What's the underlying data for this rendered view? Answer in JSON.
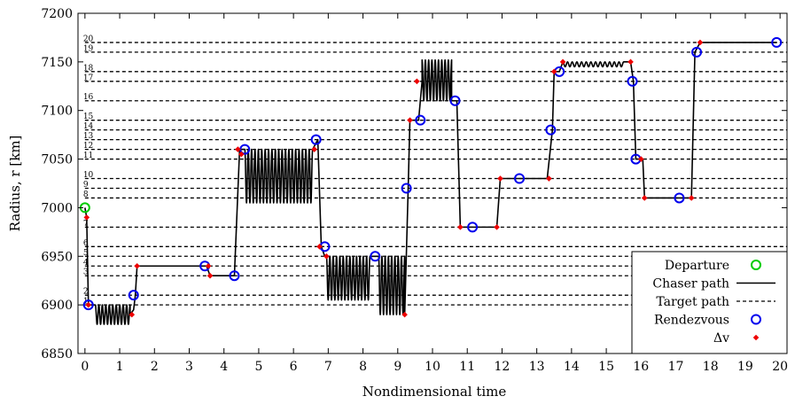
{
  "chart_data": {
    "type": "line",
    "xlabel": "Nondimensional time",
    "ylabel": "Radius, r [km]",
    "xlim": [
      -0.2,
      20.2
    ],
    "ylim": [
      6850,
      7200
    ],
    "x_ticks": [
      0,
      1,
      2,
      3,
      4,
      5,
      6,
      7,
      8,
      9,
      10,
      11,
      12,
      13,
      14,
      15,
      16,
      17,
      18,
      19,
      20
    ],
    "x_tick_labels": [
      "0",
      "1",
      "2",
      "3",
      "4",
      "5",
      "6",
      "7",
      "8",
      "9",
      "10",
      "11",
      "12",
      "13",
      "14",
      "15",
      "16",
      "17",
      "18",
      "19",
      "20"
    ],
    "y_ticks": [
      6850,
      6900,
      6950,
      7000,
      7050,
      7100,
      7150,
      7200
    ],
    "y_tick_labels": [
      "6850",
      "6900",
      "6950",
      "7000",
      "7050",
      "7100",
      "7150",
      "7200"
    ],
    "target_paths": [
      {
        "id": "1",
        "r": 6900,
        "x_start": 0.0
      },
      {
        "id": "2",
        "r": 6910,
        "x_start": 0.0
      },
      {
        "id": "3",
        "r": 6930,
        "x_start": 0.0
      },
      {
        "id": "4",
        "r": 6940,
        "x_start": 0.0
      },
      {
        "id": "5",
        "r": 6950,
        "x_start": 0.0
      },
      {
        "id": "6",
        "r": 6960,
        "x_start": 0.0
      },
      {
        "id": "7",
        "r": 6980,
        "x_start": 0.0
      },
      {
        "id": "8",
        "r": 7010,
        "x_start": 0.0
      },
      {
        "id": "9",
        "r": 7020,
        "x_start": 0.0
      },
      {
        "id": "10",
        "r": 7030,
        "x_start": 0.0
      },
      {
        "id": "11",
        "r": 7050,
        "x_start": 0.0
      },
      {
        "id": "12",
        "r": 7060,
        "x_start": 0.0
      },
      {
        "id": "13",
        "r": 7070,
        "x_start": 0.0
      },
      {
        "id": "14",
        "r": 7080,
        "x_start": 0.0
      },
      {
        "id": "15",
        "r": 7090,
        "x_start": 0.0
      },
      {
        "id": "16",
        "r": 7110,
        "x_start": 0.0
      },
      {
        "id": "17",
        "r": 7130,
        "x_start": 0.0
      },
      {
        "id": "18",
        "r": 7140,
        "x_start": 0.0
      },
      {
        "id": "19",
        "r": 7160,
        "x_start": 0.0
      },
      {
        "id": "20",
        "r": 7170,
        "x_start": 0.0
      }
    ],
    "chaser_path": [
      [
        0.0,
        7000
      ],
      [
        0.05,
        6990
      ],
      [
        0.1,
        6900
      ],
      [
        0.3,
        6900
      ],
      {
        "osc": [
          0.3,
          1.3,
          6880,
          6900,
          10
        ]
      },
      [
        1.3,
        6890
      ],
      [
        1.4,
        6895
      ],
      [
        1.45,
        6910
      ],
      [
        1.5,
        6940
      ],
      [
        3.5,
        6940
      ],
      [
        3.6,
        6930
      ],
      [
        4.3,
        6930
      ],
      [
        4.45,
        7060
      ],
      [
        4.6,
        7060
      ],
      {
        "osc": [
          4.6,
          6.55,
          7005,
          7060,
          20
        ]
      },
      [
        6.55,
        7060
      ],
      [
        6.7,
        7070
      ],
      [
        6.8,
        6960
      ],
      [
        6.9,
        6950
      ],
      {
        "osc": [
          6.95,
          8.2,
          6905,
          6950,
          13
        ]
      },
      [
        8.2,
        6950
      ],
      [
        8.35,
        6950
      ],
      {
        "osc": [
          8.45,
          9.2,
          6890,
          6950,
          8
        ]
      },
      [
        9.2,
        6890
      ],
      [
        9.3,
        7020
      ],
      [
        9.35,
        7090
      ],
      [
        9.6,
        7090
      ],
      [
        9.7,
        7130
      ],
      {
        "osc": [
          9.7,
          10.55,
          7110,
          7152,
          9
        ]
      },
      [
        10.55,
        7110
      ],
      [
        10.7,
        7110
      ],
      [
        10.8,
        6980
      ],
      [
        11.85,
        6980
      ],
      [
        11.95,
        7030
      ],
      [
        13.3,
        7030
      ],
      [
        13.45,
        7080
      ],
      [
        13.5,
        7140
      ],
      [
        13.65,
        7140
      ],
      [
        13.75,
        7150
      ],
      {
        "osc": [
          13.75,
          15.5,
          7145,
          7150,
          13
        ]
      },
      [
        15.5,
        7150
      ],
      [
        15.7,
        7150
      ],
      [
        15.78,
        7130
      ],
      [
        15.85,
        7050
      ],
      [
        16.05,
        7050
      ],
      [
        16.1,
        7010
      ],
      [
        17.45,
        7010
      ],
      [
        17.55,
        7160
      ],
      [
        17.7,
        7170
      ],
      [
        19.9,
        7170
      ]
    ],
    "departure": [
      {
        "x": 0.0,
        "y": 7000
      }
    ],
    "rendezvous": [
      {
        "x": 0.1,
        "y": 6900
      },
      {
        "x": 1.4,
        "y": 6910
      },
      {
        "x": 3.45,
        "y": 6940
      },
      {
        "x": 4.3,
        "y": 6930
      },
      {
        "x": 4.6,
        "y": 7060
      },
      {
        "x": 6.65,
        "y": 7070
      },
      {
        "x": 6.9,
        "y": 6960
      },
      {
        "x": 8.35,
        "y": 6950
      },
      {
        "x": 9.25,
        "y": 7020
      },
      {
        "x": 9.65,
        "y": 7090
      },
      {
        "x": 10.65,
        "y": 7110
      },
      {
        "x": 11.15,
        "y": 6980
      },
      {
        "x": 12.5,
        "y": 7030
      },
      {
        "x": 13.4,
        "y": 7080
      },
      {
        "x": 13.65,
        "y": 7140
      },
      {
        "x": 15.75,
        "y": 7130
      },
      {
        "x": 15.85,
        "y": 7050
      },
      {
        "x": 17.1,
        "y": 7010
      },
      {
        "x": 17.6,
        "y": 7160
      },
      {
        "x": 19.9,
        "y": 7170
      }
    ],
    "delta_v": [
      {
        "x": 0.05,
        "y": 6990
      },
      {
        "x": 0.1,
        "y": 6900
      },
      {
        "x": 1.35,
        "y": 6890
      },
      {
        "x": 1.5,
        "y": 6940
      },
      {
        "x": 3.55,
        "y": 6940
      },
      {
        "x": 3.6,
        "y": 6930
      },
      {
        "x": 4.4,
        "y": 7060
      },
      {
        "x": 4.5,
        "y": 7055
      },
      {
        "x": 6.6,
        "y": 7060
      },
      {
        "x": 6.75,
        "y": 6960
      },
      {
        "x": 6.95,
        "y": 6950
      },
      {
        "x": 9.2,
        "y": 6890
      },
      {
        "x": 9.35,
        "y": 7090
      },
      {
        "x": 9.55,
        "y": 7130
      },
      {
        "x": 10.8,
        "y": 6980
      },
      {
        "x": 11.85,
        "y": 6980
      },
      {
        "x": 11.95,
        "y": 7030
      },
      {
        "x": 13.35,
        "y": 7030
      },
      {
        "x": 13.5,
        "y": 7140
      },
      {
        "x": 13.75,
        "y": 7150
      },
      {
        "x": 15.7,
        "y": 7150
      },
      {
        "x": 16.0,
        "y": 7050
      },
      {
        "x": 16.1,
        "y": 7010
      },
      {
        "x": 17.45,
        "y": 7010
      },
      {
        "x": 17.7,
        "y": 7170
      }
    ],
    "legend": {
      "placement": "bottom-right",
      "entries": [
        {
          "label": "Departure",
          "marker": "circle",
          "color": "#00cc00"
        },
        {
          "label": "Chaser path",
          "marker": "solid-line",
          "color": "#000000"
        },
        {
          "label": "Target path",
          "marker": "dashed-line",
          "color": "#000000"
        },
        {
          "label": "Rendezvous",
          "marker": "circle",
          "color": "#0000ee"
        },
        {
          "label": "Δv",
          "marker": "diamond",
          "color": "#ee0000"
        }
      ]
    },
    "colors": {
      "departure": "#00cc00",
      "rendezvous": "#0000ee",
      "delta_v": "#ee0000",
      "chaser": "#000000",
      "target": "#000000"
    }
  }
}
